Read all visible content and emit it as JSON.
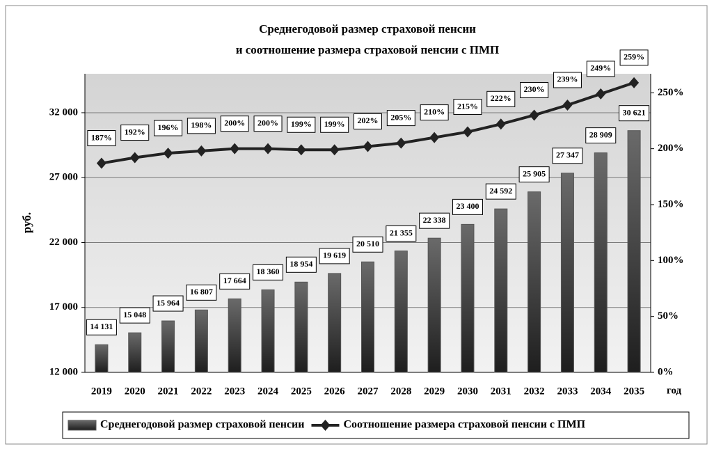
{
  "chart_data": {
    "type": "bar",
    "title": [
      "Среднегодовой размер страховой пенсии",
      "и соотношение размера страховой пенсии с ПМП"
    ],
    "ylabel": "руб.",
    "xlabel": "год",
    "categories": [
      "2019",
      "2020",
      "2021",
      "2022",
      "2023",
      "2024",
      "2025",
      "2026",
      "2027",
      "2028",
      "2029",
      "2030",
      "2031",
      "2032",
      "2033",
      "2034",
      "2035"
    ],
    "series": [
      {
        "name": "Среднегодовой размер страховой пенсии",
        "type": "bar",
        "color": "#555555",
        "values": [
          14131,
          15048,
          15964,
          16807,
          17664,
          18360,
          18954,
          19619,
          20510,
          21355,
          22338,
          23400,
          24592,
          25905,
          27347,
          28909,
          30621
        ],
        "value_labels": [
          "14 131",
          "15 048",
          "15 964",
          "16 807",
          "17 664",
          "18 360",
          "18 954",
          "19 619",
          "20 510",
          "21 355",
          "22 338",
          "23 400",
          "24 592",
          "25 905",
          "27 347",
          "28 909",
          "30 621"
        ]
      },
      {
        "name": "Соотношение размера страховой пенсии с ПМП",
        "type": "line",
        "axis": "y2",
        "color": "#222222",
        "values": [
          187,
          192,
          196,
          198,
          200,
          200,
          199,
          199,
          202,
          205,
          210,
          215,
          222,
          230,
          239,
          249,
          259
        ],
        "value_labels": [
          "187%",
          "192%",
          "196%",
          "198%",
          "200%",
          "200%",
          "199%",
          "199%",
          "202%",
          "205%",
          "210%",
          "215%",
          "222%",
          "230%",
          "239%",
          "249%",
          "259%"
        ]
      }
    ],
    "ylim": [
      12000,
      35000
    ],
    "yticks": [
      {
        "value": 12000,
        "label": "12 000"
      },
      {
        "value": 17000,
        "label": "17 000"
      },
      {
        "value": 22000,
        "label": "22 000"
      },
      {
        "value": 27000,
        "label": "27 000"
      },
      {
        "value": 32000,
        "label": "32 000"
      }
    ],
    "y2lim": [
      0,
      267
    ],
    "y2ticks": [
      {
        "value": 0,
        "label": "0%"
      },
      {
        "value": 50,
        "label": "50%"
      },
      {
        "value": 100,
        "label": "100%"
      },
      {
        "value": 150,
        "label": "150%"
      },
      {
        "value": 200,
        "label": "200%"
      },
      {
        "value": 250,
        "label": "250%"
      }
    ],
    "grid": true,
    "legend": "bottom"
  }
}
